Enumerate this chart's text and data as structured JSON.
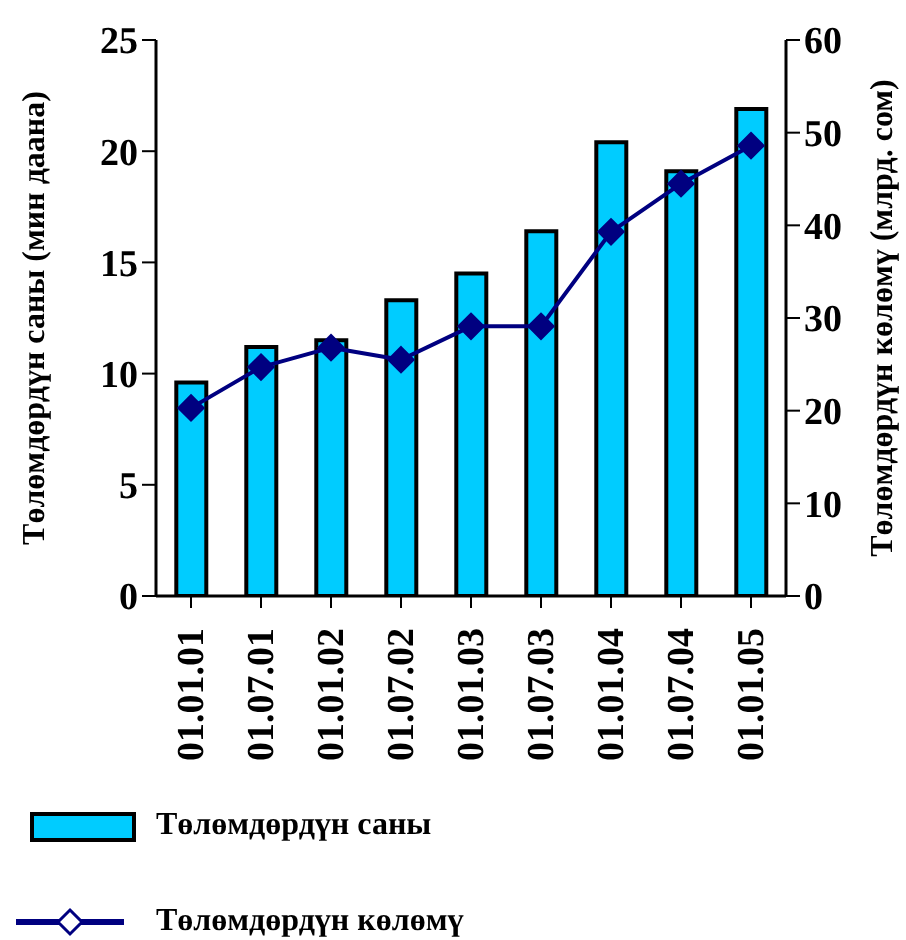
{
  "chart_data": {
    "type": "bar",
    "categories": [
      "01.01.01",
      "01.07.01",
      "01.01.02",
      "01.07.02",
      "01.01.03",
      "01.07.03",
      "01.01.04",
      "01.07.04",
      "01.01.05"
    ],
    "series": [
      {
        "name": "Төлөмдөрдүн саны",
        "color": "#00ccff",
        "values": [
          9.6,
          11.2,
          11.5,
          13.3,
          14.5,
          16.4,
          20.4,
          19.1,
          21.9
        ]
      },
      {
        "name": "Төлөмдөрдүн көлөмү",
        "type": "line",
        "axis": "y2",
        "color": "#000080",
        "values": [
          20.3,
          24.7,
          26.8,
          25.5,
          29.1,
          29.1,
          39.3,
          44.5,
          48.6
        ]
      }
    ],
    "ylabel": "Төлөмдөрдүн саны (мин даана)",
    "y2label": "Төлөмдөрдүн көлөмү (млрд. сом)",
    "ylim": [
      0,
      25
    ],
    "yticks": [
      0,
      5,
      10,
      15,
      20,
      25
    ],
    "y2lim": [
      0,
      60
    ],
    "y2ticks": [
      0,
      10,
      20,
      30,
      40,
      50,
      60
    ],
    "legend": "bottom left",
    "marker": "diamond",
    "line_style": "solid"
  }
}
